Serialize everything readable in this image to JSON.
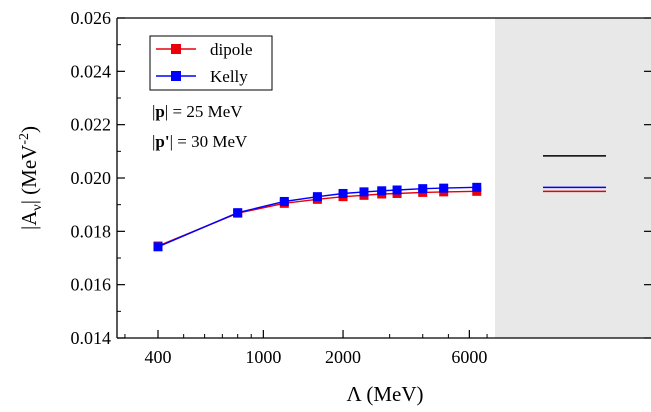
{
  "chart_data": {
    "type": "line",
    "xscale": "log",
    "xlabel": "Λ  (MeV)",
    "ylabel": "|A_ν| (MeV^-2)",
    "ylabel_parts": {
      "prefix": "|A",
      "sub": "ν",
      "mid": "| (MeV",
      "sup": "-2",
      "suffix": ")"
    },
    "xlim": [
      280,
      7500
    ],
    "ylim": [
      0.014,
      0.026
    ],
    "xticks": [
      400,
      1000,
      2000,
      6000
    ],
    "xtick_labels": [
      "400",
      "1000",
      "2000",
      "6000"
    ],
    "yticks": [
      0.014,
      0.016,
      0.018,
      0.02,
      0.022,
      0.024,
      0.026
    ],
    "ytick_labels": [
      "0.014",
      "0.016",
      "0.018",
      "0.020",
      "0.022",
      "0.024",
      "0.026"
    ],
    "x": [
      400,
      800,
      1200,
      1600,
      2000,
      2400,
      2800,
      3200,
      4000,
      4800,
      6400
    ],
    "series": [
      {
        "name": "dipole",
        "color": "#e8000b",
        "marker": "square",
        "values": [
          0.01745,
          0.01868,
          0.01905,
          0.0192,
          0.0193,
          0.01935,
          0.0194,
          0.01942,
          0.01946,
          0.01948,
          0.0195
        ]
      },
      {
        "name": "Kelly",
        "color": "#0000ff",
        "marker": "square",
        "values": [
          0.01742,
          0.0187,
          0.01912,
          0.0193,
          0.01942,
          0.01948,
          0.01952,
          0.01955,
          0.0196,
          0.01962,
          0.01965
        ]
      }
    ],
    "limit_panel": {
      "background": "#e8e8e8",
      "lines": [
        {
          "color": "#000000",
          "value": 0.02083
        },
        {
          "color": "#0000ff",
          "value": 0.01965
        },
        {
          "color": "#e8000b",
          "value": 0.0195
        }
      ]
    },
    "legend": {
      "position": "top-left",
      "entries": [
        "dipole",
        "Kelly"
      ]
    },
    "annotations": {
      "p_line": {
        "pre": "|",
        "bold": "p",
        "post": "| = 25  MeV"
      },
      "pprime_line": {
        "pre": "|",
        "bold": "p",
        "prime": "'",
        "post": "| = 30  MeV"
      }
    },
    "grid": false
  }
}
